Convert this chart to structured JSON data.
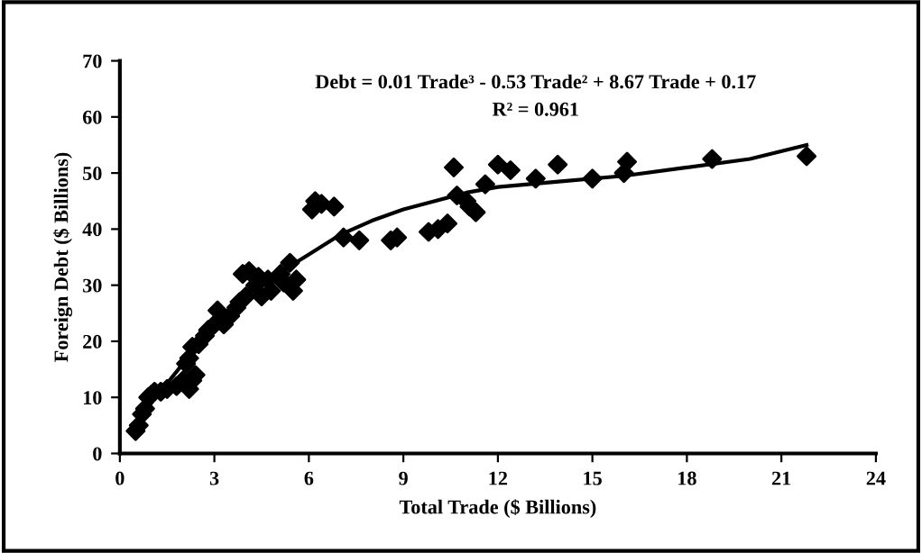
{
  "chart_data": {
    "type": "scatter",
    "xlabel": "Total Trade ($ Billions)",
    "ylabel": "Foreign Debt ($ Billions)",
    "annotations": [
      "Debt = 0.01 Trade³ - 0.53 Trade² + 8.67 Trade + 0.17",
      "R² = 0.961"
    ],
    "xlim": [
      0,
      24
    ],
    "xticks": [
      0,
      3,
      6,
      9,
      12,
      15,
      18,
      21,
      24
    ],
    "ylim": [
      0,
      70
    ],
    "yticks": [
      0,
      10,
      20,
      30,
      40,
      50,
      60,
      70
    ],
    "grid": false,
    "legend": false,
    "marker": "diamond",
    "series": [
      {
        "color": "#000000",
        "x": [
          0.5,
          0.6,
          0.7,
          0.8,
          0.9,
          1.0,
          1.1,
          1.3,
          1.5,
          1.8,
          2.0,
          2.2,
          2.3,
          2.4,
          2.1,
          2.2,
          2.3,
          2.5,
          2.7,
          2.8,
          3.0,
          3.1,
          3.3,
          3.5,
          3.7,
          3.8,
          3.9,
          4.0,
          4.1,
          4.3,
          4.4,
          4.5,
          4.7,
          4.8,
          5.1,
          5.2,
          5.4,
          5.5,
          5.6,
          6.1,
          6.2,
          6.4,
          6.8,
          7.1,
          7.6,
          8.6,
          8.8,
          9.8,
          10.1,
          10.4,
          10.6,
          10.7,
          11.0,
          11.1,
          11.3,
          11.6,
          12.0,
          12.4,
          13.2,
          13.9,
          15.0,
          16.0,
          16.1,
          18.8,
          21.8
        ],
        "values": [
          4,
          5,
          7,
          8,
          10,
          10.5,
          11,
          11,
          11.5,
          12,
          13,
          11.5,
          13,
          14,
          16,
          17,
          19,
          19.5,
          21,
          22,
          23,
          25.5,
          23,
          24.5,
          26,
          27,
          32,
          28,
          32.5,
          30,
          31.5,
          28,
          31,
          29,
          32,
          30.5,
          34,
          29,
          31,
          43.5,
          45,
          44.5,
          44,
          38.5,
          38,
          38,
          38.5,
          39.5,
          40,
          41,
          51,
          46,
          45,
          44,
          43,
          48,
          51.5,
          50.5,
          49,
          51.5,
          49,
          50,
          52,
          52.5,
          53
        ]
      },
      {
        "type": "line",
        "color": "#000000",
        "marker": "none",
        "x": [
          0.5,
          1,
          2,
          3,
          4,
          5,
          6,
          7,
          8,
          9,
          10,
          11,
          12,
          14,
          16,
          18,
          20,
          21.8
        ],
        "values": [
          4.5,
          9,
          16,
          23,
          28.5,
          32,
          35.5,
          39,
          41.5,
          43.5,
          45,
          46.5,
          47.5,
          48.5,
          49.5,
          51,
          52.5,
          55
        ]
      }
    ]
  }
}
